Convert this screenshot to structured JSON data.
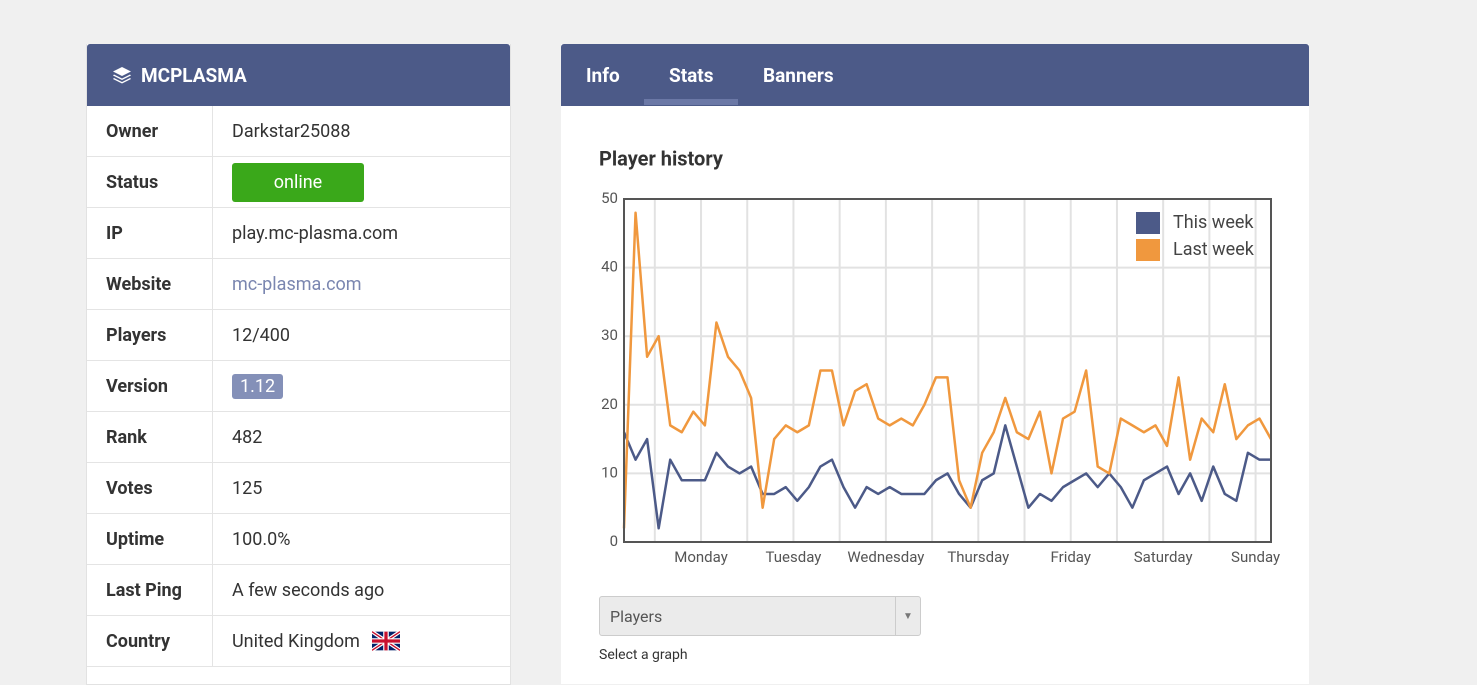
{
  "server": {
    "name": "MCPLASMA",
    "rows": [
      {
        "label": "Owner",
        "value": "Darkstar25088"
      },
      {
        "label": "Status",
        "value": "online"
      },
      {
        "label": "IP",
        "value": "play.mc-plasma.com"
      },
      {
        "label": "Website",
        "value": "mc-plasma.com"
      },
      {
        "label": "Players",
        "value": "12/400"
      },
      {
        "label": "Version",
        "value": "1.12"
      },
      {
        "label": "Rank",
        "value": "482"
      },
      {
        "label": "Votes",
        "value": "125"
      },
      {
        "label": "Uptime",
        "value": "100.0%"
      },
      {
        "label": "Last Ping",
        "value": "A few seconds ago"
      },
      {
        "label": "Country",
        "value": "United Kingdom"
      }
    ]
  },
  "tabs": [
    "Info",
    "Stats",
    "Banners"
  ],
  "select": {
    "value": "Players",
    "hint": "Select a graph"
  },
  "chart_data": {
    "type": "line",
    "title": "Player history",
    "x": [
      0,
      3,
      6,
      9,
      12,
      15,
      18,
      21,
      24,
      27,
      30,
      33,
      36,
      39,
      42,
      45,
      48,
      51,
      54,
      57,
      60,
      63,
      66,
      69,
      72,
      75,
      78,
      81,
      84,
      87,
      90,
      93,
      96,
      99,
      102,
      105,
      108,
      111,
      114,
      117,
      120,
      123,
      126,
      129,
      132,
      135,
      138,
      141,
      144,
      147,
      150,
      153,
      156,
      159,
      162,
      165,
      168
    ],
    "series": [
      {
        "name": "This week",
        "color": "#4c5a88",
        "values": [
          16,
          12,
          15,
          2,
          12,
          9,
          9,
          9,
          13,
          11,
          10,
          11,
          7,
          7,
          8,
          6,
          8,
          11,
          12,
          8,
          5,
          8,
          7,
          8,
          7,
          7,
          7,
          9,
          10,
          7,
          5,
          9,
          10,
          17,
          11,
          5,
          7,
          6,
          8,
          9,
          10,
          8,
          10,
          8,
          5,
          9,
          10,
          11,
          7,
          10,
          6,
          11,
          7,
          6,
          13,
          12,
          12
        ]
      },
      {
        "name": "Last week",
        "color": "#f0983e",
        "values": [
          2,
          48,
          27,
          30,
          17,
          16,
          19,
          17,
          32,
          27,
          25,
          21,
          5,
          15,
          17,
          16,
          17,
          25,
          25,
          17,
          22,
          23,
          18,
          17,
          18,
          17,
          20,
          24,
          24,
          9,
          5,
          13,
          16,
          21,
          16,
          15,
          19,
          10,
          18,
          19,
          25,
          11,
          10,
          18,
          17,
          16,
          17,
          14,
          24,
          12,
          18,
          16,
          23,
          15,
          17,
          18,
          15
        ]
      }
    ],
    "xlim": [
      0,
      168
    ],
    "xticks": [
      {
        "value": 20,
        "label": "Monday"
      },
      {
        "value": 44,
        "label": "Tuesday"
      },
      {
        "value": 68,
        "label": "Wednesday"
      },
      {
        "value": 92,
        "label": "Thursday"
      },
      {
        "value": 116,
        "label": "Friday"
      },
      {
        "value": 140,
        "label": "Saturday"
      },
      {
        "value": 164,
        "label": "Sunday"
      }
    ],
    "xminorticks": [
      8,
      32,
      56,
      80,
      104,
      128,
      152
    ],
    "ylim": [
      0,
      50
    ],
    "yticks": [
      0,
      10,
      20,
      30,
      40,
      50
    ],
    "grid": true,
    "legend": "top-right"
  }
}
